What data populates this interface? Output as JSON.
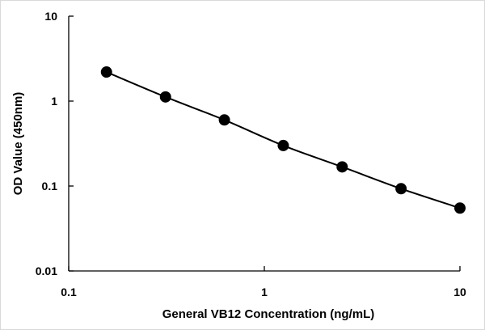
{
  "chart_data": {
    "type": "scatter",
    "xlabel": "General VB12 Concentration  (ng/mL)",
    "ylabel": "OD Value (450nm)",
    "x_scale": "log",
    "y_scale": "log",
    "xlim": [
      0.1,
      10
    ],
    "ylim": [
      0.01,
      10
    ],
    "x_ticks": [
      "0.1",
      "1",
      "10"
    ],
    "y_ticks": [
      "0.01",
      "0.1",
      "1",
      "10"
    ],
    "grid": false,
    "legend": "none",
    "series": [
      {
        "x": [
          0.156,
          0.3125,
          0.625,
          1.25,
          2.5,
          5,
          10
        ],
        "y": [
          2.2,
          1.12,
          0.6,
          0.3,
          0.168,
          0.093,
          0.055
        ],
        "marker": "circle",
        "line": "smooth",
        "color": "#000000"
      }
    ]
  }
}
